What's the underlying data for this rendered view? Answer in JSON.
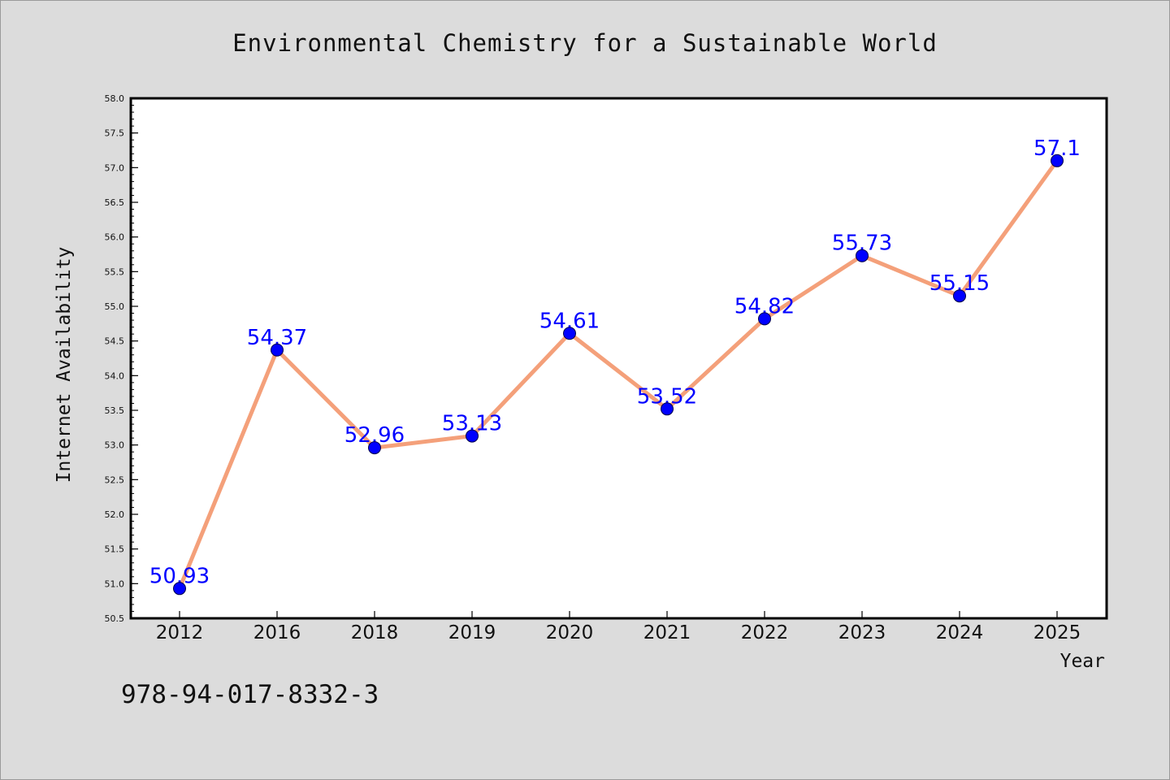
{
  "chart_data": {
    "type": "line",
    "title": "Environmental Chemistry for a Sustainable World",
    "xlabel": "Year",
    "ylabel": "Internet Availability",
    "categories": [
      "2012",
      "2016",
      "2018",
      "2019",
      "2020",
      "2021",
      "2022",
      "2023",
      "2024",
      "2025"
    ],
    "values": [
      50.93,
      54.37,
      52.96,
      53.13,
      54.61,
      53.52,
      54.82,
      55.73,
      55.15,
      57.1
    ],
    "data_labels": [
      "50.93",
      "54.37",
      "52.96",
      "53.13",
      "54.61",
      "53.52",
      "54.82",
      "55.73",
      "55.15",
      "57.1"
    ],
    "ylim": [
      50.5,
      58.0
    ],
    "yticks": [
      "50.5",
      "51.0",
      "51.5",
      "52.0",
      "52.5",
      "53.0",
      "53.5",
      "54.0",
      "54.5",
      "55.0",
      "55.5",
      "56.0",
      "56.5",
      "57.0",
      "57.5",
      "58.0"
    ],
    "grid": false,
    "legend": "none",
    "line_color": "#f4a07a",
    "marker_color": "#0000ff",
    "label_color": "#0000ff",
    "plot_background": "#ffffff",
    "page_background": "#dcdcdc"
  },
  "footer": {
    "isbn": "978-94-017-8332-3"
  }
}
